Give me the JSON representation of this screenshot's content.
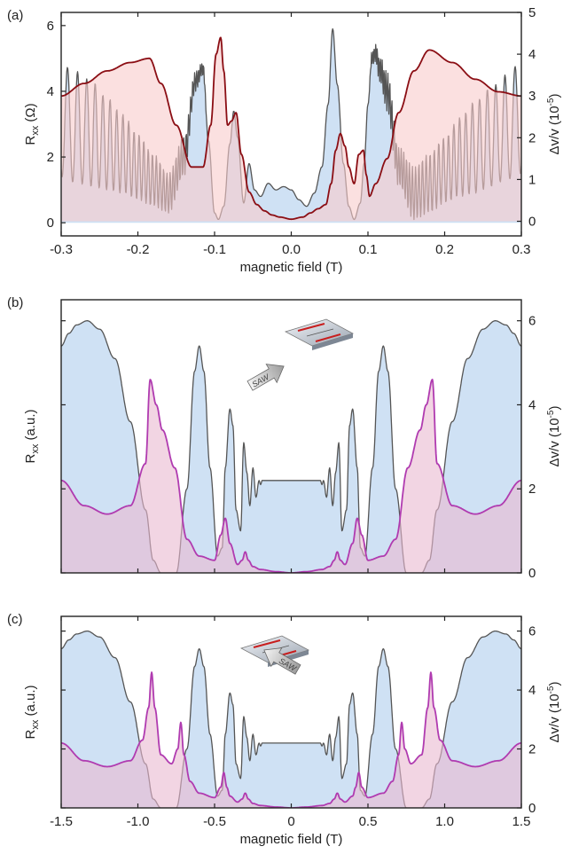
{
  "chart_data": [
    {
      "type": "area",
      "panel_label": "(a)",
      "xlabel": "magnetic field (T)",
      "ylabel": "Rxx (Ω)",
      "ylabel_parts": {
        "main": "R",
        "sub": "xx",
        "unit": " (Ω)"
      },
      "y2label_parts": {
        "main": "Δv/v (10",
        "sup": "-5",
        "end": ")"
      },
      "xlim": [
        -0.3,
        0.3
      ],
      "ylim": [
        -0.4,
        6.4
      ],
      "y2lim": [
        -0.35,
        5.0
      ],
      "xticks": [
        -0.3,
        -0.2,
        -0.1,
        0.0,
        0.1,
        0.2,
        0.3
      ],
      "xtick_labels": [
        "-0.3",
        "-0.2",
        "-0.1",
        "0.0",
        "0.1",
        "0.2",
        "0.3"
      ],
      "yticks": [
        0,
        2,
        4,
        6
      ],
      "ytick_labels": [
        "0",
        "2",
        "4",
        "6"
      ],
      "y2ticks": [
        0,
        1,
        2,
        3,
        4,
        5
      ],
      "y2tick_labels": [
        "0",
        "1",
        "2",
        "3",
        "4",
        "5"
      ],
      "series": [
        {
          "axis": "left",
          "color": "#555555",
          "fill": "#c7dcf2",
          "x": [
            -0.3,
            -0.28,
            -0.26,
            -0.24,
            -0.22,
            -0.2,
            -0.18,
            -0.16,
            -0.14,
            -0.125,
            -0.115,
            -0.108,
            -0.1,
            -0.095,
            -0.088,
            -0.08,
            -0.075,
            -0.07,
            -0.062,
            -0.055,
            -0.048,
            -0.04,
            -0.03,
            -0.02,
            -0.01,
            0.0,
            0.01,
            0.02,
            0.03,
            0.04,
            0.048,
            0.054,
            0.06,
            0.068,
            0.075,
            0.082,
            0.09,
            0.095,
            0.1,
            0.105,
            0.11,
            0.115,
            0.125,
            0.14,
            0.16,
            0.18,
            0.2,
            0.22,
            0.24,
            0.26,
            0.28,
            0.3
          ],
          "y": [
            4.6,
            4.4,
            4.0,
            3.5,
            3.0,
            2.4,
            1.8,
            1.3,
            2.6,
            4.6,
            5.0,
            2.5,
            0.3,
            0.1,
            0.5,
            2.4,
            3.4,
            2.6,
            0.6,
            1.8,
            1.0,
            0.8,
            1.2,
            1.0,
            1.1,
            1.0,
            0.7,
            0.5,
            0.9,
            1.7,
            3.6,
            5.9,
            4.2,
            1.8,
            0.5,
            0.1,
            0.6,
            1.8,
            3.6,
            5.2,
            5.4,
            5.0,
            4.2,
            2.0,
            1.2,
            1.5,
            2.0,
            2.5,
            3.0,
            3.5,
            4.0,
            4.6
          ],
          "osc_center": [
            3.1,
            2.9,
            2.7,
            2.4,
            2.1,
            1.7,
            1.3,
            0.9,
            2.0,
            4.3,
            4.7,
            2.5,
            0.3,
            0.1,
            0.5,
            2.4,
            3.4,
            2.6,
            0.6,
            1.8,
            1.0,
            0.8,
            1.2,
            1.0,
            1.1,
            1.0,
            0.7,
            0.5,
            0.9,
            1.7,
            3.6,
            5.9,
            4.2,
            1.8,
            0.5,
            0.1,
            0.6,
            1.8,
            3.6,
            5.0,
            5.2,
            4.7,
            4.0,
            1.7,
            0.9,
            1.2,
            1.6,
            2.0,
            2.3,
            2.6,
            2.9,
            3.2
          ],
          "osc_amp": [
            1.7,
            1.7,
            1.6,
            1.4,
            1.2,
            1.0,
            0.8,
            0.6,
            0.6,
            0.3,
            0.2,
            0,
            0,
            0,
            0,
            0,
            0,
            0,
            0,
            0,
            0,
            0,
            0.1,
            0.1,
            0.1,
            0.1,
            0.1,
            0.1,
            0.1,
            0,
            0,
            0,
            0,
            0,
            0,
            0,
            0,
            0,
            0,
            0.2,
            0.3,
            0.4,
            0.6,
            0.6,
            0.8,
            0.9,
            1.0,
            1.2,
            1.4,
            1.5,
            1.6,
            1.7
          ]
        },
        {
          "axis": "right",
          "color": "#8b0e14",
          "fill": "#f9cccc",
          "x": [
            -0.3,
            -0.27,
            -0.24,
            -0.21,
            -0.185,
            -0.17,
            -0.15,
            -0.13,
            -0.115,
            -0.105,
            -0.098,
            -0.092,
            -0.088,
            -0.083,
            -0.078,
            -0.072,
            -0.065,
            -0.055,
            -0.045,
            -0.035,
            -0.025,
            -0.015,
            0.0,
            0.015,
            0.025,
            0.035,
            0.045,
            0.052,
            0.058,
            0.064,
            0.07,
            0.075,
            0.082,
            0.088,
            0.094,
            0.098,
            0.102,
            0.11,
            0.125,
            0.14,
            0.16,
            0.18,
            0.21,
            0.24,
            0.27,
            0.3
          ],
          "y": [
            3.0,
            3.3,
            3.6,
            3.8,
            3.9,
            3.3,
            2.3,
            1.3,
            1.3,
            2.3,
            4.0,
            4.4,
            3.6,
            2.3,
            2.4,
            2.6,
            1.6,
            0.7,
            0.4,
            0.25,
            0.15,
            0.1,
            0.05,
            0.1,
            0.2,
            0.3,
            0.4,
            0.9,
            1.7,
            2.1,
            1.8,
            1.3,
            0.9,
            1.6,
            1.7,
            1.1,
            0.6,
            0.9,
            1.5,
            2.6,
            3.6,
            4.1,
            3.8,
            3.4,
            3.1,
            3.0
          ]
        }
      ]
    },
    {
      "type": "area",
      "panel_label": "(b)",
      "ylabel_parts": {
        "main": "R",
        "sub": "xx",
        "unit": " (a.u.)"
      },
      "y2label_parts": {
        "main": "Δv/v (10",
        "sup": "-5",
        "end": ")"
      },
      "xlim": [
        -1.5,
        1.5
      ],
      "ylim": [
        0,
        6.5
      ],
      "y2ticks": [
        0,
        2,
        4,
        6
      ],
      "y2tick_labels": [
        "0",
        "2",
        "4",
        "6"
      ],
      "inset": {
        "arrow_text": "SAW",
        "direction": "right"
      },
      "series": [
        {
          "axis": "left",
          "color": "#555555",
          "fill": "#c7dcf2",
          "x": [
            -1.5,
            -1.45,
            -1.4,
            -1.33,
            -1.25,
            -1.15,
            -1.05,
            -0.95,
            -0.9,
            -0.85,
            -0.75,
            -0.68,
            -0.63,
            -0.6,
            -0.57,
            -0.53,
            -0.48,
            -0.45,
            -0.43,
            -0.4,
            -0.38,
            -0.36,
            -0.33,
            -0.31,
            -0.29,
            -0.27,
            -0.25,
            -0.23,
            -0.21,
            -0.2,
            -0.19,
            -0.17,
            0.0,
            0.17,
            0.19,
            0.2,
            0.21,
            0.23,
            0.25,
            0.27,
            0.29,
            0.31,
            0.33,
            0.36,
            0.38,
            0.4,
            0.43,
            0.45,
            0.48,
            0.53,
            0.57,
            0.6,
            0.63,
            0.68,
            0.75,
            0.85,
            0.9,
            0.95,
            1.05,
            1.15,
            1.25,
            1.33,
            1.4,
            1.45,
            1.5
          ],
          "y": [
            5.4,
            5.7,
            5.9,
            6.0,
            5.8,
            5.1,
            3.6,
            1.5,
            0.3,
            0.0,
            0.0,
            2.0,
            4.8,
            5.4,
            4.8,
            2.5,
            0.4,
            0.6,
            2.5,
            3.9,
            3.5,
            1.5,
            1.0,
            3.1,
            2.4,
            1.6,
            2.5,
            1.8,
            2.2,
            2.1,
            2.2,
            2.2,
            2.2,
            2.2,
            2.2,
            2.1,
            2.2,
            1.8,
            2.5,
            1.6,
            2.4,
            3.1,
            1.0,
            1.5,
            3.5,
            3.9,
            2.5,
            0.6,
            0.4,
            2.5,
            4.8,
            5.4,
            4.8,
            2.0,
            0.0,
            0.0,
            0.3,
            1.5,
            3.6,
            5.1,
            5.8,
            6.0,
            5.9,
            5.7,
            5.4
          ]
        },
        {
          "axis": "right",
          "color": "#b03bb0",
          "fill": "#e9b9d0",
          "x": [
            -1.5,
            -1.35,
            -1.2,
            -1.05,
            -0.95,
            -0.92,
            -0.88,
            -0.84,
            -0.76,
            -0.68,
            -0.6,
            -0.5,
            -0.46,
            -0.43,
            -0.4,
            -0.35,
            -0.32,
            -0.3,
            -0.28,
            -0.25,
            -0.2,
            -0.1,
            0.0,
            0.1,
            0.2,
            0.25,
            0.28,
            0.3,
            0.32,
            0.35,
            0.4,
            0.43,
            0.46,
            0.5,
            0.6,
            0.68,
            0.76,
            0.84,
            0.88,
            0.92,
            0.95,
            1.05,
            1.2,
            1.35,
            1.5
          ],
          "y": [
            2.2,
            1.6,
            1.4,
            1.6,
            2.6,
            4.6,
            4.0,
            3.4,
            2.5,
            0.8,
            0.4,
            0.3,
            0.9,
            1.3,
            0.7,
            0.2,
            0.3,
            0.5,
            0.3,
            0.15,
            0.08,
            0.03,
            0.0,
            0.03,
            0.08,
            0.15,
            0.3,
            0.5,
            0.3,
            0.2,
            0.7,
            1.3,
            0.9,
            0.3,
            0.4,
            0.8,
            2.5,
            3.4,
            4.0,
            4.6,
            2.6,
            1.6,
            1.4,
            1.6,
            2.2
          ]
        }
      ]
    },
    {
      "type": "area",
      "panel_label": "(c)",
      "xlabel": "magnetic field (T)",
      "ylabel_parts": {
        "main": "R",
        "sub": "xx",
        "unit": " (a.u.)"
      },
      "y2label_parts": {
        "main": "Δv/v (10",
        "sup": "-5",
        "end": ")"
      },
      "xlim": [
        -1.5,
        1.5
      ],
      "ylim": [
        0,
        6.5
      ],
      "xticks": [
        -1.5,
        -1.0,
        -0.5,
        0.0,
        0.5,
        1.0,
        1.5
      ],
      "xtick_labels": [
        "-1.5",
        "-1.0",
        "-0.5",
        "0",
        "0.5",
        "1.0",
        "1.5"
      ],
      "y2ticks": [
        0,
        2,
        4,
        6
      ],
      "y2tick_labels": [
        "0",
        "2",
        "4",
        "6"
      ],
      "inset": {
        "arrow_text": "SAW",
        "direction": "left"
      },
      "series": [
        {
          "axis": "left",
          "color": "#555555",
          "fill": "#c7dcf2",
          "x": [
            -1.5,
            -1.45,
            -1.4,
            -1.33,
            -1.25,
            -1.15,
            -1.05,
            -0.95,
            -0.9,
            -0.85,
            -0.75,
            -0.68,
            -0.63,
            -0.6,
            -0.57,
            -0.53,
            -0.48,
            -0.45,
            -0.43,
            -0.4,
            -0.38,
            -0.36,
            -0.33,
            -0.31,
            -0.29,
            -0.27,
            -0.25,
            -0.23,
            -0.21,
            -0.2,
            -0.19,
            -0.17,
            0.0,
            0.17,
            0.19,
            0.2,
            0.21,
            0.23,
            0.25,
            0.27,
            0.29,
            0.31,
            0.33,
            0.36,
            0.38,
            0.4,
            0.43,
            0.45,
            0.48,
            0.53,
            0.57,
            0.6,
            0.63,
            0.68,
            0.75,
            0.85,
            0.9,
            0.95,
            1.05,
            1.15,
            1.25,
            1.33,
            1.4,
            1.45,
            1.5
          ],
          "y": [
            5.4,
            5.7,
            5.9,
            6.0,
            5.8,
            5.1,
            3.6,
            1.5,
            0.3,
            0.0,
            0.0,
            2.0,
            4.8,
            5.4,
            4.8,
            2.5,
            0.4,
            0.6,
            2.5,
            3.9,
            3.5,
            1.5,
            1.0,
            3.1,
            2.4,
            1.6,
            2.5,
            1.8,
            2.2,
            2.1,
            2.2,
            2.2,
            2.2,
            2.2,
            2.2,
            2.1,
            2.2,
            1.8,
            2.5,
            1.6,
            2.4,
            3.1,
            1.0,
            1.5,
            3.5,
            3.9,
            2.5,
            0.6,
            0.4,
            2.5,
            4.8,
            5.4,
            4.8,
            2.0,
            0.0,
            0.0,
            0.3,
            1.5,
            3.6,
            5.1,
            5.8,
            6.0,
            5.9,
            5.7,
            5.4
          ]
        },
        {
          "axis": "right",
          "color": "#b03bb0",
          "fill": "#e9b9d0",
          "x": [
            -1.5,
            -1.35,
            -1.2,
            -1.05,
            -0.97,
            -0.93,
            -0.91,
            -0.89,
            -0.85,
            -0.78,
            -0.74,
            -0.72,
            -0.7,
            -0.66,
            -0.6,
            -0.5,
            -0.46,
            -0.44,
            -0.42,
            -0.4,
            -0.35,
            -0.32,
            -0.3,
            -0.28,
            -0.25,
            -0.2,
            -0.1,
            0.0,
            0.1,
            0.2,
            0.25,
            0.28,
            0.3,
            0.32,
            0.35,
            0.4,
            0.42,
            0.44,
            0.46,
            0.5,
            0.6,
            0.66,
            0.7,
            0.72,
            0.74,
            0.78,
            0.85,
            0.89,
            0.91,
            0.93,
            0.97,
            1.05,
            1.2,
            1.35,
            1.5
          ],
          "y": [
            2.2,
            1.6,
            1.4,
            1.6,
            2.3,
            3.4,
            4.6,
            3.4,
            1.8,
            1.5,
            2.0,
            2.9,
            1.8,
            0.9,
            0.5,
            0.35,
            0.7,
            1.2,
            0.7,
            0.4,
            0.2,
            0.3,
            0.5,
            0.3,
            0.15,
            0.08,
            0.03,
            0.0,
            0.03,
            0.08,
            0.15,
            0.3,
            0.5,
            0.3,
            0.2,
            0.4,
            0.7,
            1.2,
            0.7,
            0.35,
            0.5,
            0.9,
            1.8,
            2.9,
            2.0,
            1.5,
            1.8,
            3.4,
            4.6,
            3.4,
            2.3,
            1.6,
            1.4,
            1.6,
            2.2
          ]
        }
      ]
    }
  ]
}
